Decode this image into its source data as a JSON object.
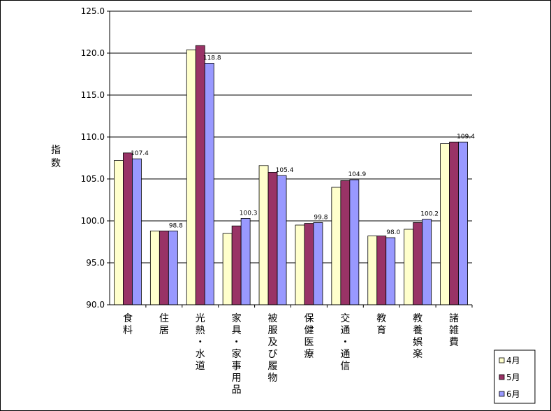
{
  "chart_data": {
    "type": "bar",
    "ylabel": "指数",
    "ylim": [
      90.0,
      125.0
    ],
    "ytick_step": 5.0,
    "yticks": [
      "90.0",
      "95.0",
      "100.0",
      "105.0",
      "110.0",
      "115.0",
      "120.0",
      "125.0"
    ],
    "grid": true,
    "legend_position": "bottom-right",
    "categories": [
      "食料",
      "住居",
      "光熱・水道",
      "家具・家事用品",
      "被服及び履物",
      "保健医療",
      "交通・通信",
      "教育",
      "教養娯楽",
      "諸雑費"
    ],
    "series": [
      {
        "name": "4月",
        "color": "#FFFFCC",
        "values": [
          107.2,
          98.8,
          120.4,
          98.5,
          106.6,
          99.5,
          104.0,
          98.2,
          99.0,
          109.2
        ]
      },
      {
        "name": "5月",
        "color": "#993366",
        "values": [
          108.1,
          98.8,
          120.9,
          99.4,
          105.8,
          99.7,
          104.8,
          98.2,
          99.8,
          109.4
        ]
      },
      {
        "name": "6月",
        "color": "#9999FF",
        "values": [
          107.4,
          98.8,
          118.8,
          100.3,
          105.4,
          99.8,
          104.9,
          98.0,
          100.2,
          109.4
        ]
      }
    ],
    "data_labels": {
      "series": "6月",
      "values": [
        "107.4",
        "98.8",
        "118.8",
        "100.3",
        "105.4",
        "99.8",
        "104.9",
        "98.0",
        "100.2",
        "109.4"
      ]
    }
  }
}
